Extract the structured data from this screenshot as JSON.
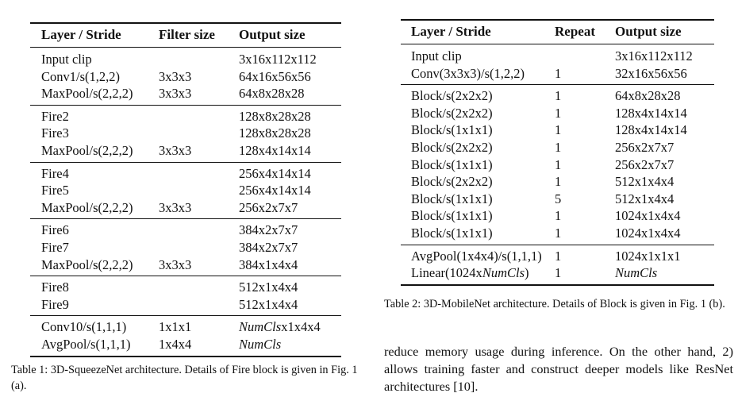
{
  "table1": {
    "headers": [
      "Layer / Stride",
      "Filter size",
      "Output size"
    ],
    "groups": [
      [
        {
          "layer": "Input clip",
          "filter": "",
          "output": "3x16x112x112"
        },
        {
          "layer": "Conv1/s(1,2,2)",
          "filter": "3x3x3",
          "output": "64x16x56x56"
        },
        {
          "layer": "MaxPool/s(2,2,2)",
          "filter": "3x3x3",
          "output": "64x8x28x28"
        }
      ],
      [
        {
          "layer": "Fire2",
          "filter": "",
          "output": "128x8x28x28"
        },
        {
          "layer": "Fire3",
          "filter": "",
          "output": "128x8x28x28"
        },
        {
          "layer": "MaxPool/s(2,2,2)",
          "filter": "3x3x3",
          "output": "128x4x14x14"
        }
      ],
      [
        {
          "layer": "Fire4",
          "filter": "",
          "output": "256x4x14x14"
        },
        {
          "layer": "Fire5",
          "filter": "",
          "output": "256x4x14x14"
        },
        {
          "layer": "MaxPool/s(2,2,2)",
          "filter": "3x3x3",
          "output": "256x2x7x7"
        }
      ],
      [
        {
          "layer": "Fire6",
          "filter": "",
          "output": "384x2x7x7"
        },
        {
          "layer": "Fire7",
          "filter": "",
          "output": "384x2x7x7"
        },
        {
          "layer": "MaxPool/s(2,2,2)",
          "filter": "3x3x3",
          "output": "384x1x4x4"
        }
      ],
      [
        {
          "layer": "Fire8",
          "filter": "",
          "output": "512x1x4x4"
        },
        {
          "layer": "Fire9",
          "filter": "",
          "output": "512x1x4x4"
        }
      ],
      [
        {
          "layer": "Conv10/s(1,1,1)",
          "filter": "1x1x1",
          "output": "NumClsx1x4x4",
          "output_italic": "NumCls",
          "output_rest": "x1x4x4"
        },
        {
          "layer": "AvgPool/s(1,1,1)",
          "filter": "1x4x4",
          "output": "NumCls",
          "output_italic": "NumCls",
          "output_rest": ""
        }
      ]
    ],
    "caption": "Table 1: 3D-SqueezeNet architecture. Details of Fire block is given in Fig. 1 (a)."
  },
  "table2": {
    "headers": [
      "Layer / Stride",
      "Repeat",
      "Output size"
    ],
    "groups": [
      [
        {
          "layer": "Input clip",
          "repeat": "",
          "output": "3x16x112x112"
        },
        {
          "layer": "Conv(3x3x3)/s(1,2,2)",
          "repeat": "1",
          "output": "32x16x56x56"
        }
      ],
      [
        {
          "layer": "Block/s(2x2x2)",
          "repeat": "1",
          "output": "64x8x28x28"
        },
        {
          "layer": "Block/s(2x2x2)",
          "repeat": "1",
          "output": "128x4x14x14"
        },
        {
          "layer": "Block/s(1x1x1)",
          "repeat": "1",
          "output": "128x4x14x14"
        },
        {
          "layer": "Block/s(2x2x2)",
          "repeat": "1",
          "output": "256x2x7x7"
        },
        {
          "layer": "Block/s(1x1x1)",
          "repeat": "1",
          "output": "256x2x7x7"
        },
        {
          "layer": "Block/s(2x2x2)",
          "repeat": "1",
          "output": "512x1x4x4"
        },
        {
          "layer": "Block/s(1x1x1)",
          "repeat": "5",
          "output": "512x1x4x4"
        },
        {
          "layer": "Block/s(1x1x1)",
          "repeat": "1",
          "output": "1024x1x4x4"
        },
        {
          "layer": "Block/s(1x1x1)",
          "repeat": "1",
          "output": "1024x1x4x4"
        }
      ],
      [
        {
          "layer": "AvgPool(1x4x4)/s(1,1,1)",
          "repeat": "1",
          "output": "1024x1x1x1"
        },
        {
          "layer": "Linear(1024xNumCls)",
          "layer_plain": "Linear(1024x",
          "layer_italic": "NumCls",
          "layer_close": ")",
          "repeat": "1",
          "output": "NumCls",
          "output_italic": "NumCls",
          "output_rest": ""
        }
      ]
    ],
    "caption": "Table 2: 3D-MobileNet architecture. Details of Block is given in Fig. 1 (b)."
  },
  "body_text": "reduce memory usage during inference. On the other hand, 2) allows training faster and construct deeper models like ResNet architectures [10]."
}
